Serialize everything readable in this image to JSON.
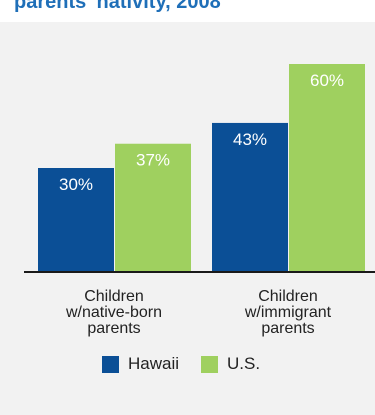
{
  "title_fragment": "parents' nativity, 2008",
  "chart_data": {
    "type": "bar",
    "categories": [
      [
        "Children",
        "w/native-born",
        "parents"
      ],
      [
        "Children",
        "w/immigrant",
        "parents"
      ]
    ],
    "series": [
      {
        "name": "Hawaii",
        "color": "#0b4f96",
        "values": [
          30,
          43
        ],
        "labels": [
          "30%",
          "43%"
        ]
      },
      {
        "name": "U.S.",
        "color": "#9fd05f",
        "values": [
          37,
          60
        ],
        "labels": [
          "37%",
          "60%"
        ]
      }
    ],
    "ylim": [
      0,
      70
    ],
    "grid": false,
    "legend": "bottom"
  }
}
